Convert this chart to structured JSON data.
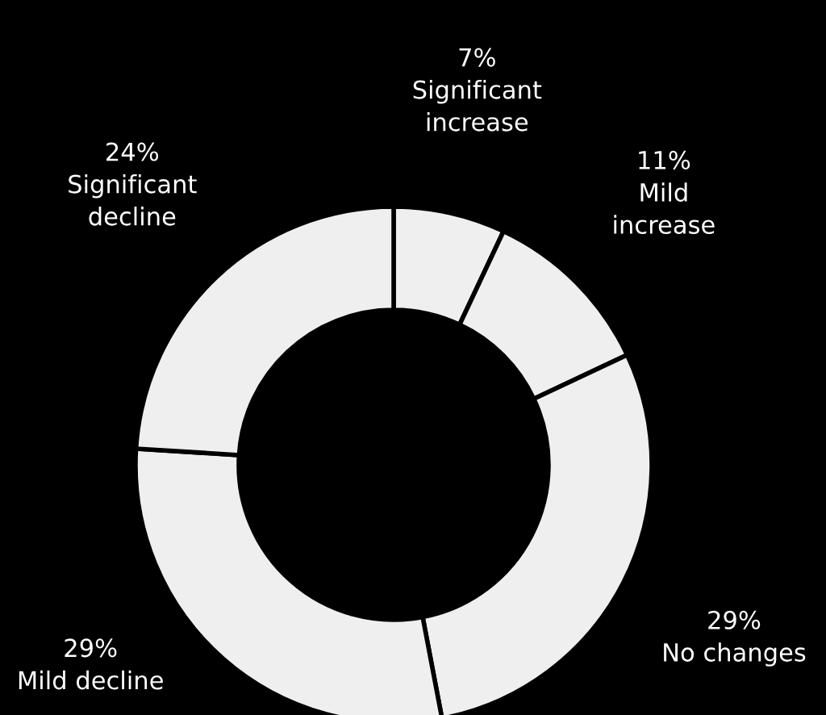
{
  "chart_data": {
    "type": "donut",
    "categories": [
      "Significant\nincrease",
      "Mild\nincrease",
      "No changes",
      "Mild decline",
      "Significant\ndecline"
    ],
    "values": [
      7,
      11,
      29,
      29,
      24
    ],
    "colors": [
      "#efefef",
      "#efefef",
      "#efefef",
      "#efefef",
      "#efefef"
    ],
    "value_labels": [
      "7%",
      "11%",
      "29%",
      "29%",
      "24%"
    ]
  }
}
